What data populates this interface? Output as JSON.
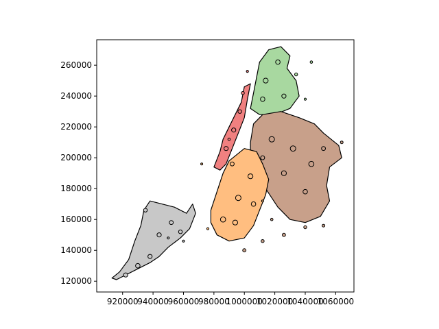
{
  "chart_data": {
    "type": "map",
    "title": "",
    "xlabel": "",
    "ylabel": "",
    "xlim": [
      903000,
      1072000
    ],
    "ylim": [
      113000,
      276500
    ],
    "x_ticks": [
      {
        "value": 920000,
        "label": "920000"
      },
      {
        "value": 940000,
        "label": "940000"
      },
      {
        "value": 960000,
        "label": "960000"
      },
      {
        "value": 980000,
        "label": "980000"
      },
      {
        "value": 1000000,
        "label": "1000000"
      },
      {
        "value": 1020000,
        "label": "1020000"
      },
      {
        "value": 1040000,
        "label": "1040000"
      },
      {
        "value": 1060000,
        "label": "1060000"
      }
    ],
    "y_ticks": [
      {
        "value": 120000,
        "label": "120000"
      },
      {
        "value": 140000,
        "label": "140000"
      },
      {
        "value": 160000,
        "label": "160000"
      },
      {
        "value": 180000,
        "label": "180000"
      },
      {
        "value": 200000,
        "label": "200000"
      },
      {
        "value": 220000,
        "label": "220000"
      },
      {
        "value": 240000,
        "label": "240000"
      },
      {
        "value": 260000,
        "label": "260000"
      }
    ],
    "legend": "none",
    "grid": false,
    "regions": [
      {
        "id": "staten-island",
        "color": "#c8c8c8",
        "outline": [
          [
            913000,
            122000
          ],
          [
            918000,
            126000
          ],
          [
            924000,
            134000
          ],
          [
            928000,
            146000
          ],
          [
            932000,
            156000
          ],
          [
            934000,
            166000
          ],
          [
            938000,
            172000
          ],
          [
            946000,
            170000
          ],
          [
            954000,
            168000
          ],
          [
            962000,
            164000
          ],
          [
            966000,
            170000
          ],
          [
            968000,
            164000
          ],
          [
            964000,
            154000
          ],
          [
            958000,
            148000
          ],
          [
            950000,
            142000
          ],
          [
            944000,
            136000
          ],
          [
            938000,
            132000
          ],
          [
            930000,
            128000
          ],
          [
            922000,
            124000
          ],
          [
            916000,
            121000
          ]
        ],
        "blobs": [
          [
            922000,
            124000,
            1400
          ],
          [
            930000,
            130000,
            1500
          ],
          [
            938000,
            136000,
            1400
          ],
          [
            944000,
            150000,
            1400
          ],
          [
            952000,
            158000,
            1300
          ],
          [
            935000,
            166000,
            1200
          ],
          [
            958000,
            152000,
            1200
          ]
        ]
      },
      {
        "id": "manhattan",
        "color": "#f08080",
        "outline": [
          [
            980000,
            194000
          ],
          [
            984000,
            204000
          ],
          [
            986000,
            212000
          ],
          [
            990000,
            220000
          ],
          [
            994000,
            228000
          ],
          [
            998000,
            236000
          ],
          [
            1000000,
            246000
          ],
          [
            1004000,
            248000
          ],
          [
            1002000,
            238000
          ],
          [
            1000000,
            226000
          ],
          [
            996000,
            216000
          ],
          [
            992000,
            206000
          ],
          [
            988000,
            196000
          ],
          [
            984000,
            192000
          ]
        ],
        "blobs": [
          [
            988000,
            206000,
            1400
          ],
          [
            993000,
            218000,
            1400
          ],
          [
            997000,
            230000,
            1200
          ],
          [
            999000,
            242000,
            1000
          ]
        ]
      },
      {
        "id": "bronx",
        "color": "#a8d8a0",
        "outline": [
          [
            1004000,
            232000
          ],
          [
            1006000,
            242000
          ],
          [
            1008000,
            252000
          ],
          [
            1010000,
            262000
          ],
          [
            1016000,
            270000
          ],
          [
            1024000,
            272000
          ],
          [
            1030000,
            266000
          ],
          [
            1028000,
            258000
          ],
          [
            1034000,
            250000
          ],
          [
            1036000,
            240000
          ],
          [
            1030000,
            232000
          ],
          [
            1020000,
            228000
          ],
          [
            1010000,
            228000
          ]
        ],
        "blobs": [
          [
            1014000,
            250000,
            1600
          ],
          [
            1022000,
            262000,
            1500
          ],
          [
            1012000,
            238000,
            1500
          ],
          [
            1026000,
            240000,
            1400
          ],
          [
            1034000,
            254000,
            1000
          ]
        ]
      },
      {
        "id": "queens",
        "color": "#c8a08a",
        "outline": [
          [
            1004000,
            210000
          ],
          [
            1006000,
            222000
          ],
          [
            1012000,
            228000
          ],
          [
            1024000,
            230000
          ],
          [
            1036000,
            226000
          ],
          [
            1046000,
            222000
          ],
          [
            1052000,
            216000
          ],
          [
            1062000,
            208000
          ],
          [
            1064000,
            200000
          ],
          [
            1056000,
            194000
          ],
          [
            1054000,
            182000
          ],
          [
            1056000,
            172000
          ],
          [
            1050000,
            162000
          ],
          [
            1040000,
            158000
          ],
          [
            1030000,
            160000
          ],
          [
            1022000,
            168000
          ],
          [
            1014000,
            180000
          ],
          [
            1010000,
            192000
          ],
          [
            1004000,
            200000
          ]
        ],
        "blobs": [
          [
            1018000,
            212000,
            1800
          ],
          [
            1032000,
            206000,
            1800
          ],
          [
            1044000,
            196000,
            1700
          ],
          [
            1026000,
            190000,
            1600
          ],
          [
            1040000,
            178000,
            1500
          ],
          [
            1052000,
            206000,
            1300
          ],
          [
            1012000,
            200000,
            1300
          ]
        ]
      },
      {
        "id": "brooklyn",
        "color": "#ffbe80",
        "outline": [
          [
            978000,
            166000
          ],
          [
            982000,
            178000
          ],
          [
            986000,
            190000
          ],
          [
            990000,
            198000
          ],
          [
            1000000,
            206000
          ],
          [
            1008000,
            204000
          ],
          [
            1012000,
            196000
          ],
          [
            1016000,
            186000
          ],
          [
            1014000,
            176000
          ],
          [
            1010000,
            166000
          ],
          [
            1006000,
            156000
          ],
          [
            1000000,
            148000
          ],
          [
            990000,
            146000
          ],
          [
            982000,
            150000
          ],
          [
            978000,
            158000
          ]
        ],
        "blobs": [
          [
            986000,
            160000,
            1700
          ],
          [
            996000,
            174000,
            1800
          ],
          [
            1004000,
            188000,
            1600
          ],
          [
            994000,
            158000,
            1600
          ],
          [
            1006000,
            170000,
            1500
          ],
          [
            992000,
            196000,
            1300
          ]
        ]
      }
    ],
    "fragments": [
      {
        "x": 1000000,
        "y": 140000,
        "r": 1100,
        "color": "#c8a08a"
      },
      {
        "x": 1012000,
        "y": 146000,
        "r": 1000,
        "color": "#c8a08a"
      },
      {
        "x": 1026000,
        "y": 150000,
        "r": 1100,
        "color": "#c8a08a"
      },
      {
        "x": 1040000,
        "y": 155000,
        "r": 1000,
        "color": "#c8a08a"
      },
      {
        "x": 1052000,
        "y": 156000,
        "r": 900,
        "color": "#c8a08a"
      },
      {
        "x": 1018000,
        "y": 160000,
        "r": 800,
        "color": "#c8a08a"
      },
      {
        "x": 1044000,
        "y": 262000,
        "r": 800,
        "color": "#a8d8a0"
      },
      {
        "x": 1040000,
        "y": 238000,
        "r": 700,
        "color": "#a8d8a0"
      },
      {
        "x": 1064000,
        "y": 210000,
        "r": 900,
        "color": "#c8a08a"
      },
      {
        "x": 1002000,
        "y": 256000,
        "r": 700,
        "color": "#f08080"
      },
      {
        "x": 990000,
        "y": 212000,
        "r": 800,
        "color": "#f08080"
      },
      {
        "x": 976000,
        "y": 154000,
        "r": 700,
        "color": "#ffbe80"
      },
      {
        "x": 972000,
        "y": 196000,
        "r": 500,
        "color": "#ffbe80"
      },
      {
        "x": 1012000,
        "y": 172000,
        "r": 500,
        "color": "#ffbe80"
      },
      {
        "x": 950000,
        "y": 148000,
        "r": 500,
        "color": "#c8c8c8"
      },
      {
        "x": 960000,
        "y": 146000,
        "r": 500,
        "color": "#c8c8c8"
      }
    ]
  }
}
